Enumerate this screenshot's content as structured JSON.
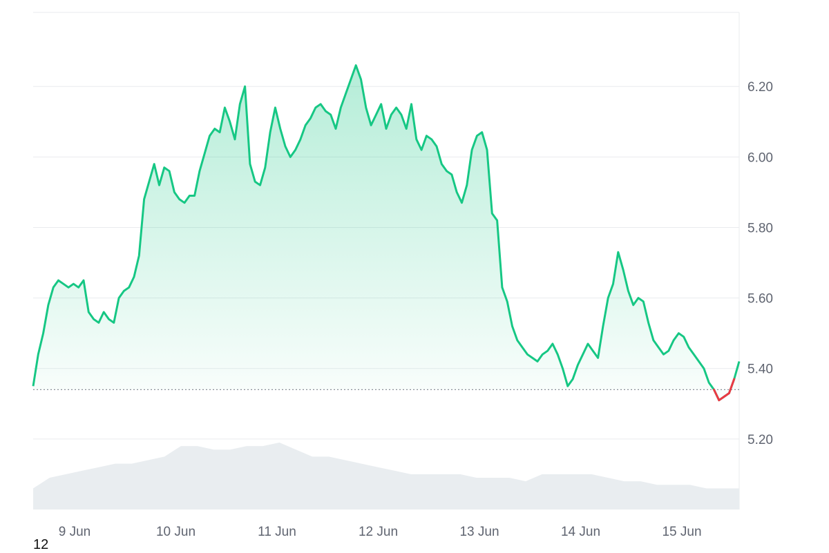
{
  "chart_data": {
    "type": "area",
    "title": "",
    "xlabel": "",
    "ylabel": "",
    "x_ticks": [
      "9 Jun",
      "10 Jun",
      "11 Jun",
      "12 Jun",
      "13 Jun",
      "14 Jun",
      "15 Jun"
    ],
    "y_ticks": [
      "5.20",
      "5.40",
      "5.60",
      "5.80",
      "6.00",
      "6.20"
    ],
    "ylim": [
      5.0,
      6.41
    ],
    "baseline": 5.34,
    "grid": "horizontal",
    "colors": {
      "up": "#16c784",
      "down": "#ea3943",
      "volume": "#e9edf0"
    },
    "series": [
      {
        "values": [
          5.35,
          5.44,
          5.5,
          5.58,
          5.63,
          5.65,
          5.64,
          5.63,
          5.64,
          5.63,
          5.65,
          5.56,
          5.54,
          5.53,
          5.56,
          5.54,
          5.53,
          5.6,
          5.62,
          5.63,
          5.66,
          5.72,
          5.88,
          5.93,
          5.98,
          5.92,
          5.97,
          5.96,
          5.9,
          5.88,
          5.87,
          5.89,
          5.89,
          5.96,
          6.01,
          6.06,
          6.08,
          6.07,
          6.14,
          6.1,
          6.05,
          6.15,
          6.2,
          5.98,
          5.93,
          5.92,
          5.97,
          6.07,
          6.14,
          6.08,
          6.03,
          6.0,
          6.02,
          6.05,
          6.09,
          6.11,
          6.14,
          6.15,
          6.13,
          6.12,
          6.08,
          6.14,
          6.18,
          6.22,
          6.26,
          6.22,
          6.14,
          6.09,
          6.12,
          6.15,
          6.08,
          6.12,
          6.14,
          6.12,
          6.08,
          6.15,
          6.05,
          6.02,
          6.06,
          6.05,
          6.03,
          5.98,
          5.96,
          5.95,
          5.9,
          5.87,
          5.92,
          6.02,
          6.06,
          6.07,
          6.02,
          5.84,
          5.82,
          5.63,
          5.59,
          5.52,
          5.48,
          5.46,
          5.44,
          5.43,
          5.42,
          5.44,
          5.45,
          5.47,
          5.44,
          5.4,
          5.35,
          5.37,
          5.41,
          5.44,
          5.47,
          5.45,
          5.43,
          5.52,
          5.6,
          5.64,
          5.73,
          5.68,
          5.62,
          5.58,
          5.6,
          5.59,
          5.53,
          5.48,
          5.46,
          5.44,
          5.45,
          5.48,
          5.5,
          5.49,
          5.46,
          5.44,
          5.42,
          5.4,
          5.36,
          5.34,
          5.31,
          5.32,
          5.33,
          5.37,
          5.42
        ]
      }
    ],
    "volume_values": [
      5.06,
      5.09,
      5.1,
      5.11,
      5.12,
      5.13,
      5.13,
      5.14,
      5.15,
      5.18,
      5.18,
      5.17,
      5.17,
      5.18,
      5.18,
      5.19,
      5.17,
      5.15,
      5.15,
      5.14,
      5.13,
      5.12,
      5.11,
      5.1,
      5.1,
      5.1,
      5.1,
      5.09,
      5.09,
      5.09,
      5.08,
      5.1,
      5.1,
      5.1,
      5.1,
      5.09,
      5.08,
      5.08,
      5.07,
      5.07,
      5.07,
      5.06,
      5.06,
      5.06
    ]
  },
  "footer_note": "12"
}
